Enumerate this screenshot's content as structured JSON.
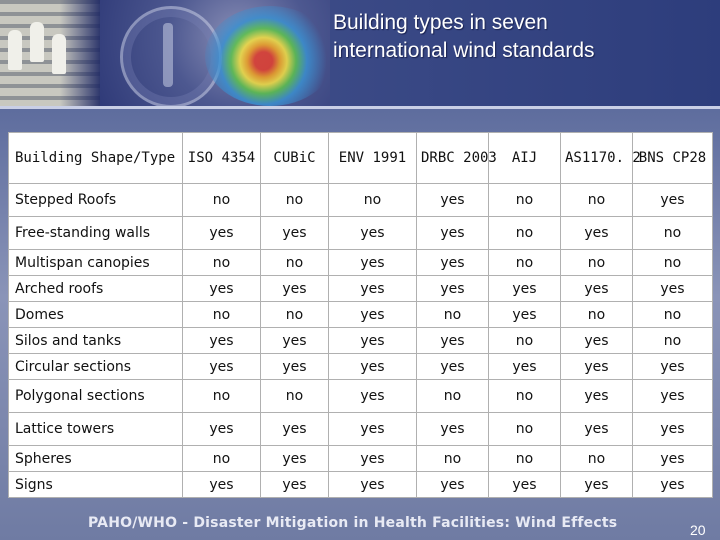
{
  "slide": {
    "title": "Building types in seven international wind standards",
    "footer": "PAHO/WHO - Disaster Mitigation in Health Facilities: Wind Effects",
    "page_number": "20"
  },
  "table": {
    "headers": [
      "Building Shape/Type",
      "ISO 4354",
      "CUBiC",
      "ENV 1991",
      "DRBC 2003",
      "AIJ",
      "AS1170. 2",
      "BNS CP28"
    ],
    "rows": [
      {
        "label": "Stepped Roofs",
        "values": [
          "no",
          "no",
          "no",
          "yes",
          "no",
          "no",
          "yes"
        ]
      },
      {
        "label": "Free-standing walls",
        "values": [
          "yes",
          "yes",
          "yes",
          "yes",
          "no",
          "yes",
          "no"
        ]
      },
      {
        "label": "Multispan canopies",
        "values": [
          "no",
          "no",
          "yes",
          "yes",
          "no",
          "no",
          "no"
        ]
      },
      {
        "label": "Arched roofs",
        "values": [
          "yes",
          "yes",
          "yes",
          "yes",
          "yes",
          "yes",
          "yes"
        ]
      },
      {
        "label": "Domes",
        "values": [
          "no",
          "no",
          "yes",
          "no",
          "yes",
          "no",
          "no"
        ]
      },
      {
        "label": "Silos and tanks",
        "values": [
          "yes",
          "yes",
          "yes",
          "yes",
          "no",
          "yes",
          "no"
        ]
      },
      {
        "label": "Circular sections",
        "values": [
          "yes",
          "yes",
          "yes",
          "yes",
          "yes",
          "yes",
          "yes"
        ]
      },
      {
        "label": "Polygonal sections",
        "values": [
          "no",
          "no",
          "yes",
          "no",
          "no",
          "yes",
          "yes"
        ]
      },
      {
        "label": "Lattice towers",
        "values": [
          "yes",
          "yes",
          "yes",
          "yes",
          "no",
          "yes",
          "yes"
        ]
      },
      {
        "label": "Spheres",
        "values": [
          "no",
          "yes",
          "yes",
          "no",
          "no",
          "no",
          "yes"
        ]
      },
      {
        "label": "Signs",
        "values": [
          "yes",
          "yes",
          "yes",
          "yes",
          "yes",
          "yes",
          "yes"
        ]
      }
    ]
  }
}
